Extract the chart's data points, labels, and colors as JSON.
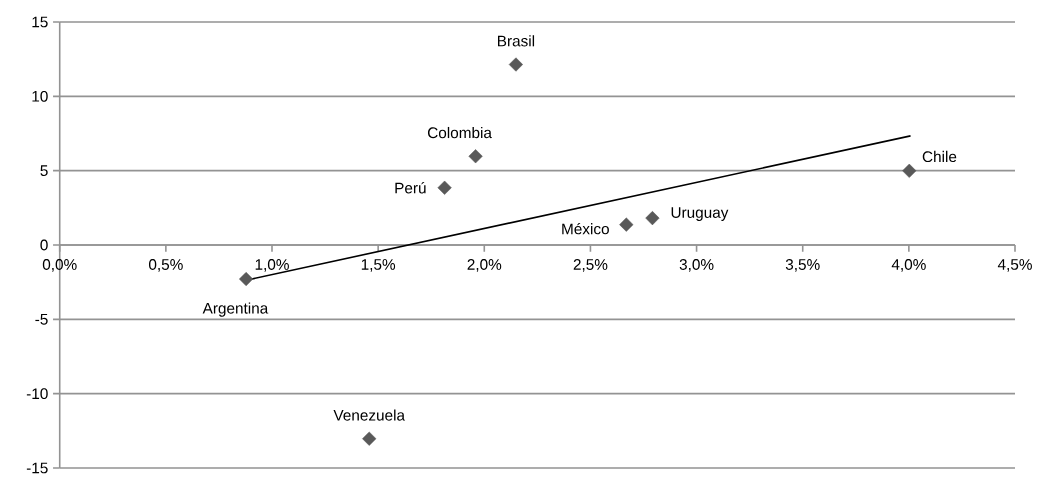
{
  "chart_data": {
    "type": "scatter",
    "series": [
      {
        "color": "#595959",
        "marker": "diamond",
        "x": [
          0.878,
          1.458,
          1.813,
          1.959,
          2.149,
          2.669,
          2.792,
          4.002
        ],
        "values": [
          -2.29,
          -13.03,
          3.85,
          5.97,
          12.14,
          1.37,
          1.81,
          4.99
        ]
      },
      {
        "type": "line",
        "color": "#000000",
        "marker": "none",
        "x": [
          0.878,
          4.008
        ],
        "values": [
          -2.37,
          7.34
        ]
      }
    ],
    "xlim": [
      0,
      4.5
    ],
    "xticks": [
      {
        "value": 0,
        "label": "0,0%"
      },
      {
        "value": 0.5,
        "label": "0,5%"
      },
      {
        "value": 1,
        "label": "1,0%"
      },
      {
        "value": 1.5,
        "label": "1,5%"
      },
      {
        "value": 2,
        "label": "2,0%"
      },
      {
        "value": 2.5,
        "label": "2,5%"
      },
      {
        "value": 3,
        "label": "3,0%"
      },
      {
        "value": 3.5,
        "label": "3,5%"
      },
      {
        "value": 4,
        "label": "4,0%"
      },
      {
        "value": 4.5,
        "label": "4,5%"
      }
    ],
    "ylim": [
      -15,
      15
    ],
    "yticks": [
      -15,
      -10,
      -5,
      0,
      5,
      10,
      15
    ],
    "grid": "y",
    "annotations": [
      {
        "text": "Argentina",
        "x": 0.878,
        "y": -2.29
      },
      {
        "text": "Venezuela",
        "x": 1.458,
        "y": -13.03
      },
      {
        "text": "Perú",
        "x": 1.813,
        "y": 3.85
      },
      {
        "text": "Colombia",
        "x": 1.959,
        "y": 5.97
      },
      {
        "text": "Brasil",
        "x": 2.149,
        "y": 12.14
      },
      {
        "text": "México",
        "x": 2.669,
        "y": 1.37
      },
      {
        "text": "Uruguay",
        "x": 2.792,
        "y": 1.81
      },
      {
        "text": "Chile",
        "x": 4.002,
        "y": 4.99
      }
    ]
  }
}
